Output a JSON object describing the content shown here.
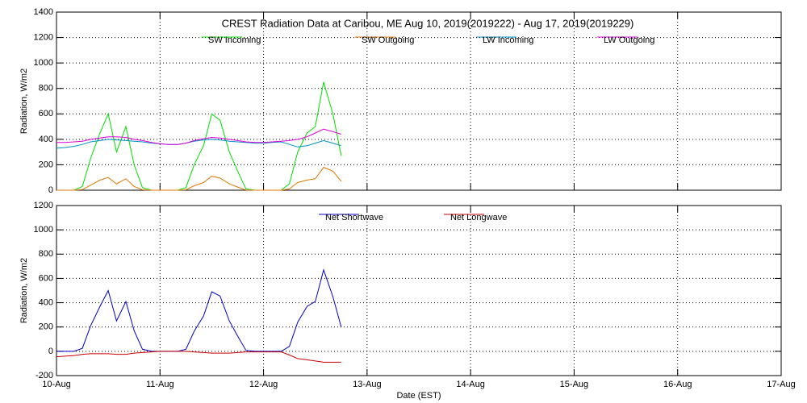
{
  "chart_data": [
    {
      "type": "line",
      "title": "CREST Radiation Data at Caribou, ME   Aug 10, 2019(2019222) - Aug 17, 2019(2019229)",
      "y_label": "Radiation, W/m2",
      "x": [
        10,
        10.08,
        10.17,
        10.25,
        10.33,
        10.42,
        10.5,
        10.58,
        10.67,
        10.75,
        10.83,
        10.92,
        11,
        11.08,
        11.17,
        11.25,
        11.33,
        11.42,
        11.5,
        11.58,
        11.67,
        11.75,
        11.83,
        11.92,
        12,
        12.08,
        12.17,
        12.25,
        12.33,
        12.42,
        12.5,
        12.58,
        12.67,
        12.75
      ],
      "series": [
        {
          "name": "SW Incoming",
          "color": "#00dd00",
          "values": [
            0,
            0,
            0,
            30,
            250,
            450,
            600,
            300,
            500,
            200,
            20,
            0,
            0,
            0,
            0,
            20,
            200,
            350,
            600,
            550,
            300,
            150,
            10,
            0,
            0,
            0,
            0,
            50,
            300,
            450,
            500,
            850,
            600,
            270
          ]
        },
        {
          "name": "SW Outgoing",
          "color": "#e07800",
          "values": [
            0,
            0,
            0,
            5,
            40,
            80,
            100,
            50,
            90,
            30,
            3,
            0,
            0,
            0,
            0,
            3,
            35,
            60,
            110,
            95,
            50,
            25,
            2,
            0,
            0,
            0,
            0,
            10,
            60,
            80,
            90,
            180,
            150,
            70
          ]
        },
        {
          "name": "LW Incoming",
          "color": "#0090c0",
          "values": [
            330,
            335,
            345,
            360,
            380,
            390,
            400,
            395,
            390,
            385,
            380,
            370,
            365,
            360,
            360,
            370,
            385,
            395,
            400,
            395,
            385,
            380,
            375,
            370,
            370,
            375,
            380,
            360,
            340,
            350,
            370,
            390,
            370,
            350
          ]
        },
        {
          "name": "LW Outgoing",
          "color": "#dd00dd",
          "values": [
            375,
            375,
            380,
            385,
            400,
            410,
            420,
            420,
            415,
            400,
            390,
            375,
            365,
            360,
            360,
            370,
            390,
            405,
            415,
            410,
            400,
            390,
            380,
            375,
            375,
            380,
            385,
            390,
            400,
            420,
            450,
            480,
            460,
            440
          ]
        }
      ],
      "xlim": [
        10,
        17
      ],
      "xticks": [
        10,
        11,
        12,
        13,
        14,
        15,
        16,
        17
      ],
      "ylim": [
        0,
        1400
      ],
      "yticks": [
        0,
        200,
        400,
        600,
        800,
        1000,
        1200,
        1400
      ],
      "grid": true
    },
    {
      "type": "line",
      "y_label": "Radiation, W/m2",
      "x_label": "Date (EST)",
      "x": [
        10,
        10.08,
        10.17,
        10.25,
        10.33,
        10.42,
        10.5,
        10.58,
        10.67,
        10.75,
        10.83,
        10.92,
        11,
        11.08,
        11.17,
        11.25,
        11.33,
        11.42,
        11.5,
        11.58,
        11.67,
        11.75,
        11.83,
        11.92,
        12,
        12.08,
        12.17,
        12.25,
        12.33,
        12.42,
        12.5,
        12.58,
        12.67,
        12.75
      ],
      "series": [
        {
          "name": "Net Shortwave",
          "color": "#0000cc",
          "values": [
            0,
            0,
            0,
            25,
            210,
            370,
            500,
            250,
            410,
            170,
            17,
            0,
            0,
            0,
            0,
            17,
            165,
            290,
            490,
            455,
            250,
            125,
            8,
            0,
            0,
            0,
            0,
            40,
            240,
            370,
            410,
            670,
            450,
            200
          ]
        },
        {
          "name": "Net Longwave",
          "color": "#cc0000",
          "values": [
            -45,
            -40,
            -35,
            -25,
            -20,
            -20,
            -20,
            -25,
            -25,
            -15,
            -10,
            -5,
            0,
            0,
            0,
            0,
            -5,
            -10,
            -15,
            -15,
            -15,
            -10,
            -5,
            -5,
            -5,
            -5,
            -5,
            -30,
            -60,
            -70,
            -80,
            -90,
            -90,
            -90
          ]
        }
      ],
      "xlim": [
        10,
        17
      ],
      "xticks": [
        {
          "value": 10,
          "label": "10-Aug"
        },
        {
          "value": 11,
          "label": "11-Aug"
        },
        {
          "value": 12,
          "label": "12-Aug"
        },
        {
          "value": 13,
          "label": "13-Aug"
        },
        {
          "value": 14,
          "label": "14-Aug"
        },
        {
          "value": 15,
          "label": "15-Aug"
        },
        {
          "value": 16,
          "label": "16-Aug"
        },
        {
          "value": 17,
          "label": "17-Aug"
        }
      ],
      "ylim": [
        -200,
        1200
      ],
      "yticks": [
        -200,
        0,
        200,
        400,
        600,
        800,
        1000,
        1200
      ],
      "grid": true
    }
  ]
}
